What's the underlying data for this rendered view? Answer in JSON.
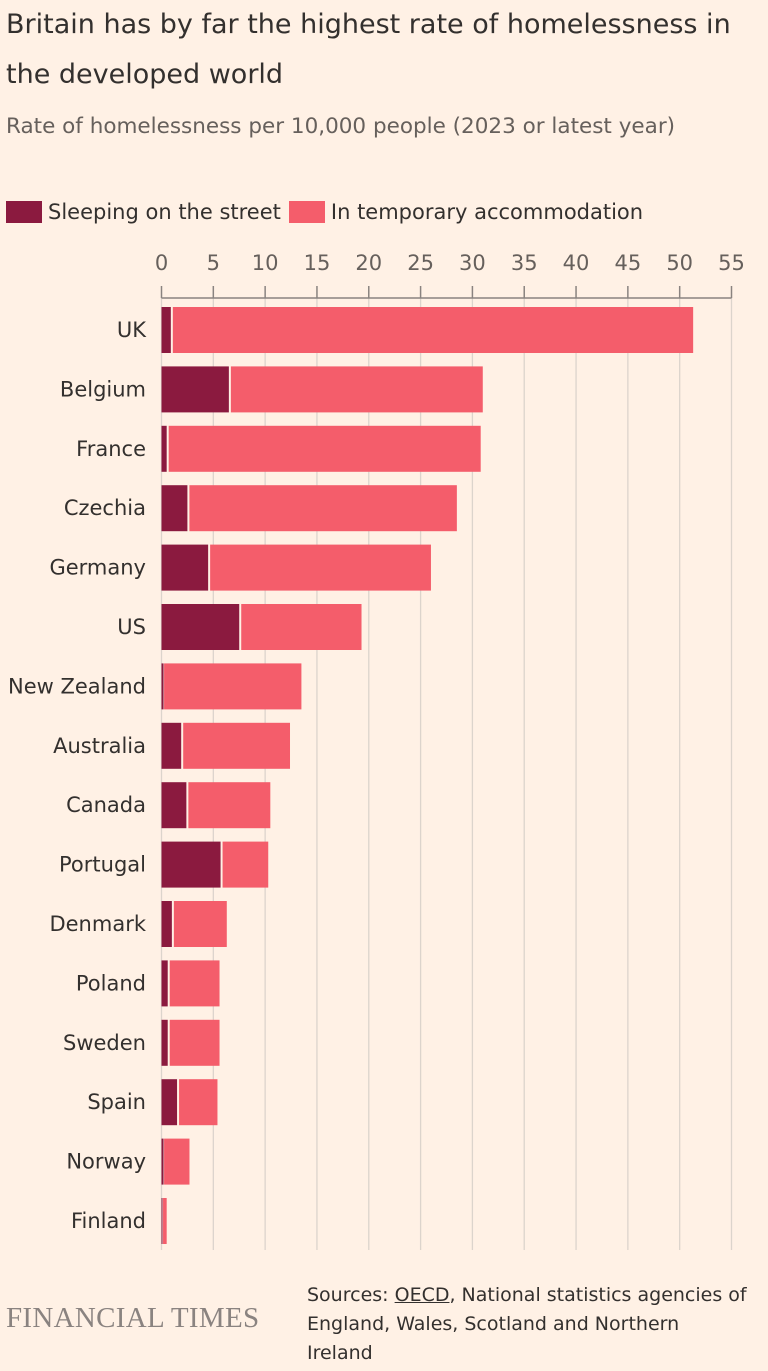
{
  "title": "Britain has by far the highest rate of homelessness in the developed world",
  "subtitle": "Rate of homelessness per 10,000 people (2023 or latest year)",
  "colors": {
    "background": "#FFF1E5",
    "street": "#8B1A3F",
    "temporary": "#F45D6B",
    "grid": "#DCD4CC",
    "axis": "#8A8380"
  },
  "chart_data": {
    "type": "bar",
    "orientation": "horizontal",
    "stacked": true,
    "title": "Britain has by far the highest rate of homelessness in the developed world",
    "subtitle": "Rate of homelessness per 10,000 people (2023 or latest year)",
    "xlim": [
      0,
      55
    ],
    "xticks": [
      "0",
      "5",
      "10",
      "15",
      "20",
      "25",
      "30",
      "35",
      "40",
      "45",
      "50",
      "55"
    ],
    "grid": true,
    "legend_position": "top-left",
    "categories": [
      "UK",
      "Belgium",
      "France",
      "Czechia",
      "Germany",
      "US",
      "New Zealand",
      "Australia",
      "Canada",
      "Portugal",
      "Denmark",
      "Poland",
      "Sweden",
      "Spain",
      "Norway",
      "Finland"
    ],
    "series": [
      {
        "name": "Sleeping on the street",
        "values": [
          0.9,
          6.5,
          0.5,
          2.5,
          4.5,
          7.5,
          0.2,
          1.9,
          2.4,
          5.7,
          1.0,
          0.6,
          0.6,
          1.5,
          0.2,
          0.1
        ]
      },
      {
        "name": "In temporary accommodation",
        "values": [
          50.4,
          24.5,
          30.3,
          26.0,
          21.5,
          11.8,
          13.3,
          10.5,
          8.1,
          4.6,
          5.3,
          5.0,
          5.0,
          3.9,
          2.5,
          0.4
        ]
      }
    ]
  },
  "footer": {
    "logo": "FINANCIAL TIMES",
    "sources_prefix": "Sources: ",
    "sources_link": "OECD",
    "sources_rest": ", National statistics agencies of England, Wales, Scotland and Northern Ireland"
  }
}
